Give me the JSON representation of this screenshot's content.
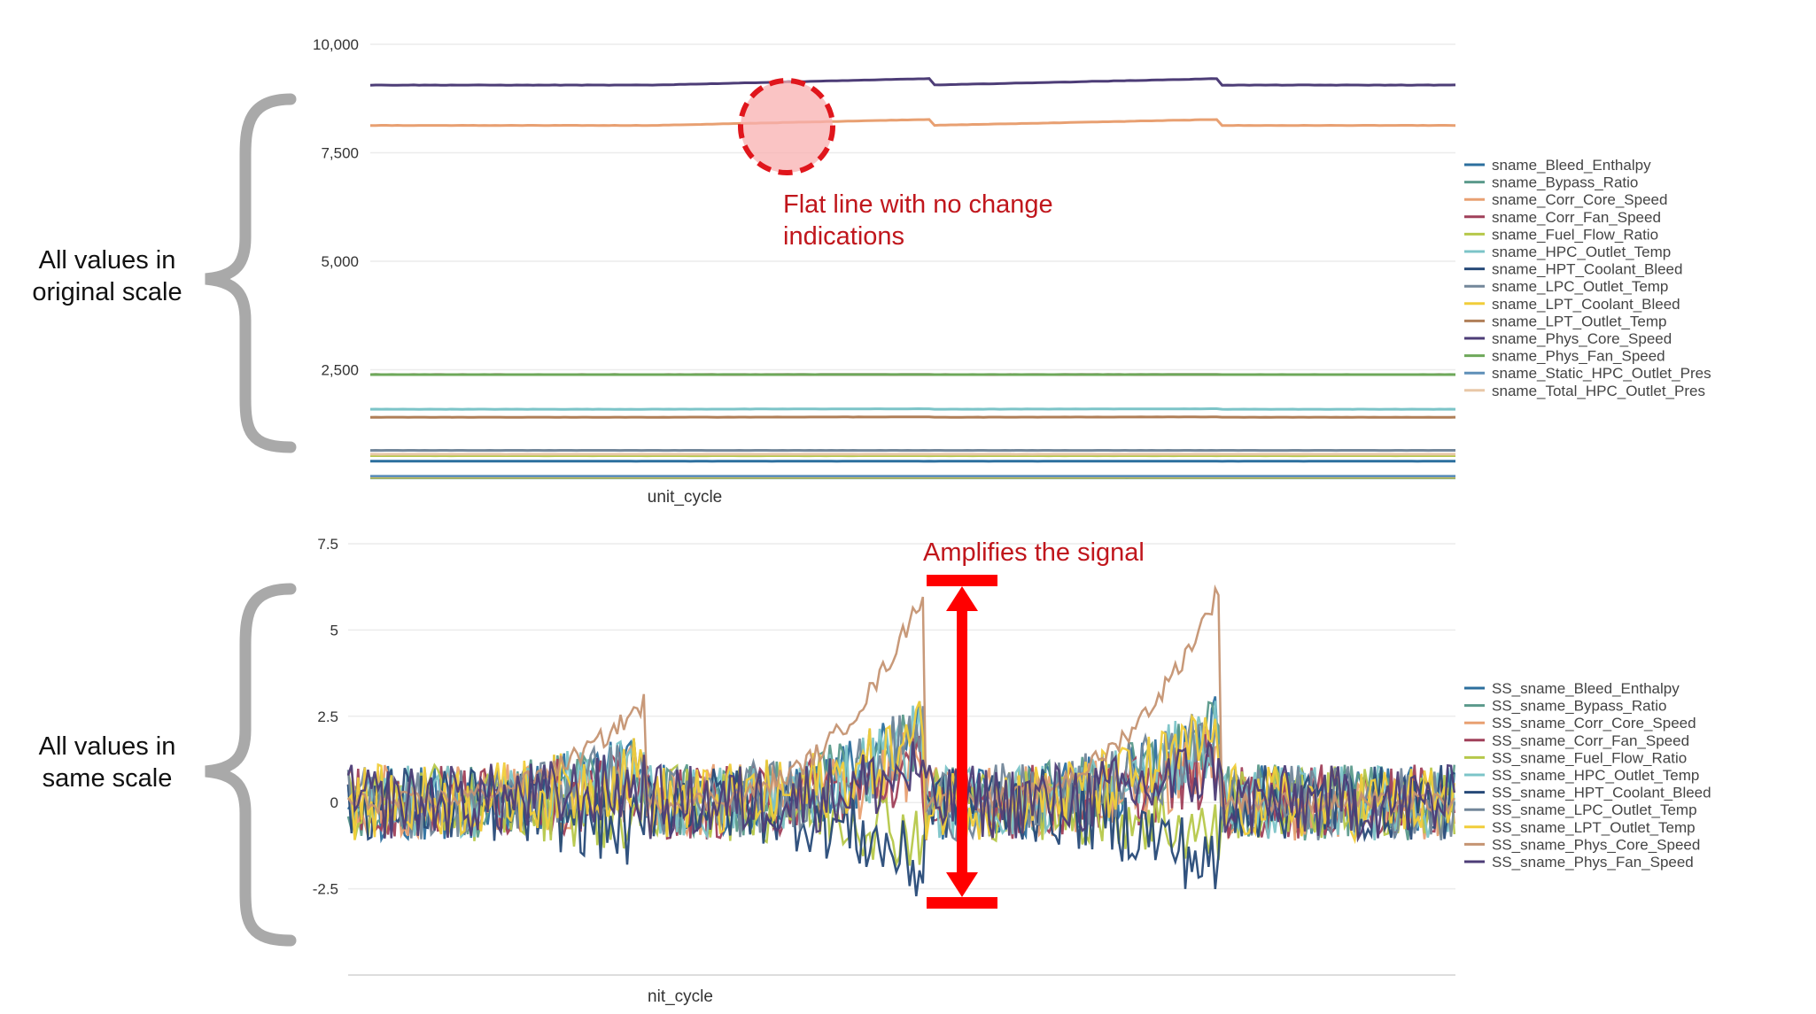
{
  "annotations": {
    "top_side": [
      "All values in",
      "original scale"
    ],
    "bottom_side": [
      "All values in",
      "same scale"
    ],
    "flat_note": [
      "Flat line with no change",
      "indications"
    ],
    "amplify_note": "Amplifies the signal",
    "highlight_color": "#e0161c"
  },
  "chart_data": [
    {
      "type": "line",
      "title": "",
      "xlabel": "unit_cycle",
      "ylabel": "",
      "yticks": [
        "10,000",
        "7,500",
        "5,000",
        "2,500"
      ],
      "ylim": [
        0,
        10000
      ],
      "xlim": [
        0,
        1000
      ],
      "grid": true,
      "legend_position": "right",
      "series": [
        {
          "name": "sname_Bleed_Enthalpy",
          "color": "#2c6f9e",
          "base": 392,
          "step": 0,
          "noise": 3
        },
        {
          "name": "sname_Bypass_Ratio",
          "color": "#5b9a8b",
          "base": 8.4,
          "step": 0,
          "noise": 1
        },
        {
          "name": "sname_Corr_Core_Speed",
          "color": "#e8a072",
          "base": 8130,
          "step": 140,
          "noise": 6
        },
        {
          "name": "sname_Corr_Fan_Speed",
          "color": "#a0405a",
          "base": 2388,
          "step": 2,
          "noise": 2
        },
        {
          "name": "sname_Fuel_Flow_Ratio",
          "color": "#b6c84a",
          "base": 520,
          "step": 0,
          "noise": 2
        },
        {
          "name": "sname_HPC_Outlet_Temp",
          "color": "#7cc4c8",
          "base": 1590,
          "step": 10,
          "noise": 4
        },
        {
          "name": "sname_HPT_Coolant_Bleed",
          "color": "#274a78",
          "base": 39,
          "step": 0,
          "noise": 1
        },
        {
          "name": "sname_LPC_Outlet_Temp",
          "color": "#73879a",
          "base": 642,
          "step": 0,
          "noise": 2
        },
        {
          "name": "sname_LPT_Coolant_Bleed",
          "color": "#f1cd3a",
          "base": 23,
          "step": 0,
          "noise": 1
        },
        {
          "name": "sname_LPT_Outlet_Temp",
          "color": "#b07f58",
          "base": 1405,
          "step": 8,
          "noise": 4
        },
        {
          "name": "sname_Phys_Core_Speed",
          "color": "#4d3d77",
          "base": 9060,
          "step": 150,
          "noise": 6
        },
        {
          "name": "sname_Phys_Fan_Speed",
          "color": "#6ea85a",
          "base": 2388,
          "step": 2,
          "noise": 2
        },
        {
          "name": "sname_Static_HPC_Outlet_Pres",
          "color": "#5e8fb8",
          "base": 47,
          "step": 0,
          "noise": 1
        },
        {
          "name": "sname_Total_HPC_Outlet_Pres",
          "color": "#e8c8a8",
          "base": 553,
          "step": 0,
          "noise": 2
        }
      ]
    },
    {
      "type": "line",
      "title": "",
      "xlabel": "nit_cycle",
      "ylabel": "",
      "yticks": [
        "7.5",
        "5",
        "2.5",
        "0",
        "-2.5"
      ],
      "ylim": [
        -5,
        7.5
      ],
      "xlim": [
        0,
        1000
      ],
      "grid": true,
      "legend_position": "right",
      "series": [
        {
          "name": "SS_sname_Bleed_Enthalpy",
          "color": "#2c6f9e",
          "trend": 1.0
        },
        {
          "name": "SS_sname_Bypass_Ratio",
          "color": "#5b9a8b",
          "trend": 1.0
        },
        {
          "name": "SS_sname_Corr_Core_Speed",
          "color": "#e8a072",
          "trend": 0.6
        },
        {
          "name": "SS_sname_Corr_Fan_Speed",
          "color": "#a0405a",
          "trend": 0.5
        },
        {
          "name": "SS_sname_Fuel_Flow_Ratio",
          "color": "#b6c84a",
          "trend": -0.5
        },
        {
          "name": "SS_sname_HPC_Outlet_Temp",
          "color": "#7cc4c8",
          "trend": 1.0
        },
        {
          "name": "SS_sname_HPT_Coolant_Bleed",
          "color": "#274a78",
          "trend": -1.0
        },
        {
          "name": "SS_sname_LPC_Outlet_Temp",
          "color": "#73879a",
          "trend": 1.0
        },
        {
          "name": "SS_sname_LPT_Outlet_Temp",
          "color": "#f1cd3a",
          "trend": 1.0
        },
        {
          "name": "SS_sname_Phys_Core_Speed",
          "color": "#c59472",
          "trend": 3.0
        },
        {
          "name": "SS_sname_Phys_Fan_Speed",
          "color": "#4d3d77",
          "trend": 0.5
        }
      ]
    }
  ]
}
